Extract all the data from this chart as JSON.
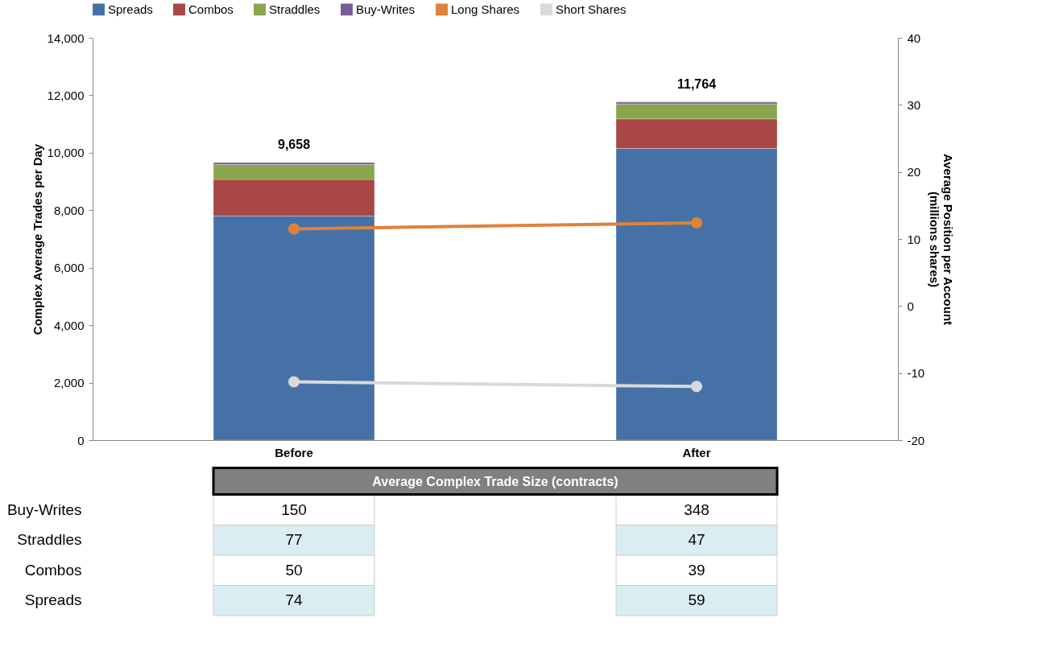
{
  "chart_data": [
    {
      "type": "bar",
      "stacked": true,
      "categories": [
        "Before",
        "After"
      ],
      "ylabel": "Complex Average Trades per Day",
      "y2label": "Average Position per Account\n(millions shares)",
      "ylim": [
        0,
        14000
      ],
      "yticks": [
        0,
        {
          "value": 2000,
          "label": "2,000"
        },
        {
          "value": 4000,
          "label": "4,000"
        },
        {
          "value": 6000,
          "label": "6,000"
        },
        {
          "value": 8000,
          "label": "8,000"
        },
        {
          "value": 10000,
          "label": "10,000"
        },
        {
          "value": 12000,
          "label": "12,000"
        },
        {
          "value": 14000,
          "label": "14,000"
        }
      ],
      "y2lim": [
        -20,
        40
      ],
      "y2ticks": [
        -20,
        -10,
        0,
        10,
        20,
        30,
        40
      ],
      "legend": "top",
      "grid": false,
      "totals": [
        "9,658",
        "11,764"
      ],
      "series": [
        {
          "name": "Spreads",
          "color": "#4571a6",
          "values": [
            7800,
            10150
          ]
        },
        {
          "name": "Combos",
          "color": "#a84745",
          "values": [
            1270,
            1030
          ]
        },
        {
          "name": "Straddles",
          "color": "#89a54e",
          "values": [
            520,
            520
          ]
        },
        {
          "name": "Buy-Writes",
          "color": "#7a5c9a",
          "values": [
            68,
            64
          ]
        },
        {
          "name": "Long Shares",
          "type": "line",
          "axis": "y2",
          "marker": "circle",
          "color": "#e0823a",
          "values": [
            11.5,
            12.4
          ]
        },
        {
          "name": "Short Shares",
          "type": "line",
          "axis": "y2",
          "marker": "circle",
          "color": "#d9d9d9",
          "values": [
            -11.3,
            -12.0
          ]
        }
      ]
    },
    {
      "type": "other",
      "title": "Average Complex Trade Size (contracts)",
      "annotations": [
        "Buy-Writes",
        "150",
        "348",
        "Straddles",
        "77",
        "47",
        "Combos",
        "50",
        "39",
        "Spreads",
        "74",
        "59"
      ]
    }
  ]
}
